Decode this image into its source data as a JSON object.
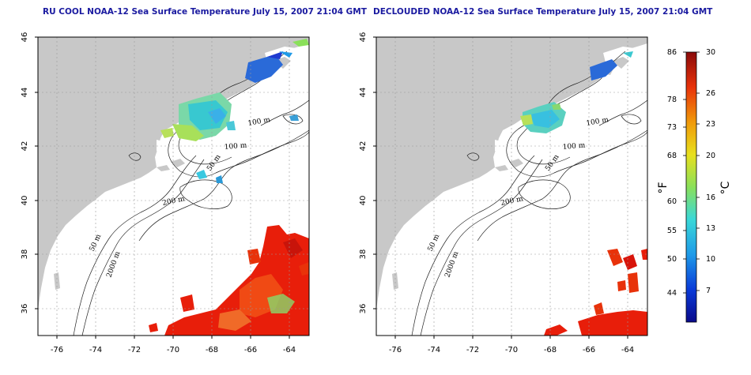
{
  "titles": {
    "left": "RU COOL NOAA-12 Sea Surface Temperature July 15, 2007 21:04 GMT",
    "right": "DECLOUDED NOAA-12 Sea Surface Temperature July 15, 2007 21:04 GMT"
  },
  "axes": {
    "lon_ticks": [
      "-76",
      "-74",
      "-72",
      "-70",
      "-68",
      "-66",
      "-64"
    ],
    "lat_ticks": [
      "46",
      "44",
      "42",
      "40",
      "38",
      "36"
    ]
  },
  "contour_labels": {
    "left": [
      "100 m",
      "100 m",
      "50 m",
      "200 m",
      "50 m",
      "2000 m"
    ],
    "right": [
      "100 m",
      "100 m",
      "50 m",
      "200 m",
      "50 m",
      "2000 m"
    ]
  },
  "colorbar": {
    "fahrenheit_ticks": [
      "86",
      "78",
      "73",
      "68",
      "60",
      "55",
      "50",
      "44"
    ],
    "celsius_ticks": [
      "30",
      "26",
      "23",
      "20",
      "16",
      "13",
      "10",
      "7"
    ],
    "fahrenheit_unit": "°F",
    "celsius_unit": "°C"
  },
  "colors": {
    "land": "#c8c8c8",
    "warm": "#e81e0a",
    "cool": "#2a6ad8",
    "mid": "#7ad86a",
    "title": "#1a1aa0"
  }
}
